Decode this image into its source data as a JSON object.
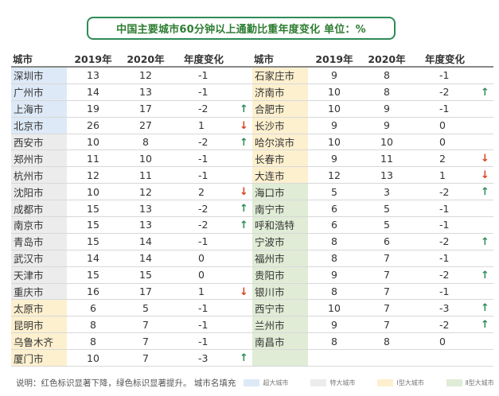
{
  "title": "中国主要城市60分钟以上通勤比重年度变化  单位：%",
  "headers": {
    "city": "城市",
    "y2019": "2019年",
    "y2020": "2020年",
    "change": "年度变化"
  },
  "colors": {
    "super": "#dde9f6",
    "special": "#ececec",
    "type1": "#fdf0cf",
    "type2": "#e0ecd6",
    "arrow_up": "#2e8b57",
    "arrow_down": "#d9411e"
  },
  "left_rows": [
    {
      "city": "深圳市",
      "y2019": "13",
      "y2020": "12",
      "change": "-1",
      "arrow": "",
      "cat": "super"
    },
    {
      "city": "广州市",
      "y2019": "14",
      "y2020": "13",
      "change": "-1",
      "arrow": "",
      "cat": "super"
    },
    {
      "city": "上海市",
      "y2019": "19",
      "y2020": "17",
      "change": "-2",
      "arrow": "up",
      "cat": "super"
    },
    {
      "city": "北京市",
      "y2019": "26",
      "y2020": "27",
      "change": "1",
      "arrow": "down",
      "cat": "super"
    },
    {
      "city": "西安市",
      "y2019": "10",
      "y2020": "8",
      "change": "-2",
      "arrow": "up",
      "cat": "special"
    },
    {
      "city": "郑州市",
      "y2019": "11",
      "y2020": "10",
      "change": "-1",
      "arrow": "",
      "cat": "special"
    },
    {
      "city": "杭州市",
      "y2019": "12",
      "y2020": "11",
      "change": "-1",
      "arrow": "",
      "cat": "special"
    },
    {
      "city": "沈阳市",
      "y2019": "10",
      "y2020": "12",
      "change": "2",
      "arrow": "down",
      "cat": "special"
    },
    {
      "city": "成都市",
      "y2019": "15",
      "y2020": "13",
      "change": "-2",
      "arrow": "up",
      "cat": "special"
    },
    {
      "city": "南京市",
      "y2019": "15",
      "y2020": "13",
      "change": "-2",
      "arrow": "up",
      "cat": "special"
    },
    {
      "city": "青岛市",
      "y2019": "15",
      "y2020": "14",
      "change": "-1",
      "arrow": "",
      "cat": "special"
    },
    {
      "city": "武汉市",
      "y2019": "14",
      "y2020": "14",
      "change": "0",
      "arrow": "",
      "cat": "special"
    },
    {
      "city": "天津市",
      "y2019": "15",
      "y2020": "15",
      "change": "0",
      "arrow": "",
      "cat": "special"
    },
    {
      "city": "重庆市",
      "y2019": "16",
      "y2020": "17",
      "change": "1",
      "arrow": "down",
      "cat": "special"
    },
    {
      "city": "太原市",
      "y2019": "6",
      "y2020": "5",
      "change": "-1",
      "arrow": "",
      "cat": "type1"
    },
    {
      "city": "昆明市",
      "y2019": "8",
      "y2020": "7",
      "change": "-1",
      "arrow": "",
      "cat": "type1"
    },
    {
      "city": "乌鲁木齐",
      "y2019": "8",
      "y2020": "7",
      "change": "-1",
      "arrow": "",
      "cat": "type1"
    },
    {
      "city": "厦门市",
      "y2019": "10",
      "y2020": "7",
      "change": "-3",
      "arrow": "up",
      "cat": "type1"
    }
  ],
  "right_rows": [
    {
      "city": "石家庄市",
      "y2019": "9",
      "y2020": "8",
      "change": "-1",
      "arrow": "",
      "cat": "type1"
    },
    {
      "city": "济南市",
      "y2019": "10",
      "y2020": "8",
      "change": "-2",
      "arrow": "up",
      "cat": "type1"
    },
    {
      "city": "合肥市",
      "y2019": "10",
      "y2020": "9",
      "change": "-1",
      "arrow": "",
      "cat": "type1"
    },
    {
      "city": "长沙市",
      "y2019": "9",
      "y2020": "9",
      "change": "0",
      "arrow": "",
      "cat": "type1"
    },
    {
      "city": "哈尔滨市",
      "y2019": "10",
      "y2020": "10",
      "change": "0",
      "arrow": "",
      "cat": "type1"
    },
    {
      "city": "长春市",
      "y2019": "9",
      "y2020": "11",
      "change": "2",
      "arrow": "down",
      "cat": "type1"
    },
    {
      "city": "大连市",
      "y2019": "12",
      "y2020": "13",
      "change": "1",
      "arrow": "down",
      "cat": "type1"
    },
    {
      "city": "海口市",
      "y2019": "5",
      "y2020": "3",
      "change": "-2",
      "arrow": "up",
      "cat": "type2"
    },
    {
      "city": "南宁市",
      "y2019": "6",
      "y2020": "5",
      "change": "-1",
      "arrow": "",
      "cat": "type2"
    },
    {
      "city": "呼和浩特",
      "y2019": "6",
      "y2020": "5",
      "change": "-1",
      "arrow": "",
      "cat": "type2"
    },
    {
      "city": "宁波市",
      "y2019": "8",
      "y2020": "6",
      "change": "-2",
      "arrow": "up",
      "cat": "type2"
    },
    {
      "city": "福州市",
      "y2019": "8",
      "y2020": "7",
      "change": "-1",
      "arrow": "",
      "cat": "type2"
    },
    {
      "city": "贵阳市",
      "y2019": "9",
      "y2020": "7",
      "change": "-2",
      "arrow": "up",
      "cat": "type2"
    },
    {
      "city": "银川市",
      "y2019": "8",
      "y2020": "7",
      "change": "-1",
      "arrow": "",
      "cat": "type2"
    },
    {
      "city": "西宁市",
      "y2019": "10",
      "y2020": "7",
      "change": "-3",
      "arrow": "up",
      "cat": "type2"
    },
    {
      "city": "兰州市",
      "y2019": "9",
      "y2020": "7",
      "change": "-2",
      "arrow": "up",
      "cat": "type2"
    },
    {
      "city": "南昌市",
      "y2019": "8",
      "y2020": "8",
      "change": "0",
      "arrow": "",
      "cat": "type2"
    },
    {
      "city": "",
      "y2019": "",
      "y2020": "",
      "change": "",
      "arrow": "",
      "cat": "type2"
    }
  ],
  "footer": {
    "note": "说明：红色标识显著下降，绿色标识显著提升。 城市名填充",
    "legend": [
      {
        "label": "超大城市",
        "cat": "super"
      },
      {
        "label": "特大城市",
        "cat": "special"
      },
      {
        "label": "Ⅰ型大城市",
        "cat": "type1"
      },
      {
        "label": "Ⅱ型大城市",
        "cat": "type2"
      }
    ]
  }
}
